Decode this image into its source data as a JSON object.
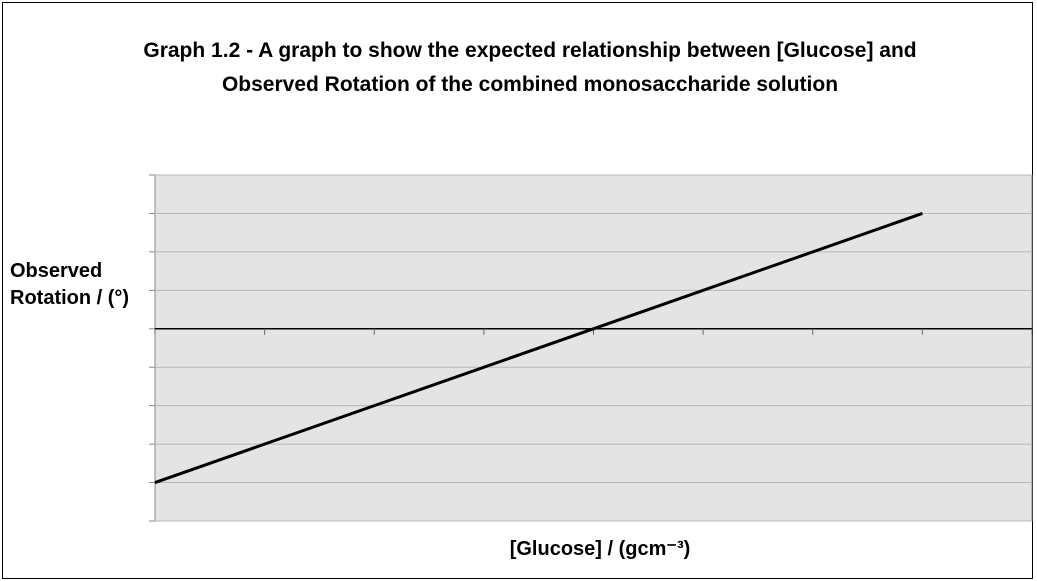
{
  "chart_data": {
    "type": "line",
    "title": "Graph 1.2 - A graph to show the expected relationship between [Glucose] and Observed Rotation of the combined monosaccharide solution",
    "x_label": "[Glucose] / (gcm⁻³)",
    "y_label": "Observed Rotation / (°)",
    "x": [
      0,
      7
    ],
    "series": [
      {
        "name": "Observed Rotation",
        "color": "#000000",
        "values": [
          -4,
          3
        ]
      }
    ],
    "xlim": [
      0,
      8
    ],
    "xticks": [
      0,
      1,
      2,
      3,
      4,
      5,
      6,
      7,
      8
    ],
    "ylim": [
      -5,
      4
    ],
    "yticks": [
      -5,
      -4,
      -3,
      -2,
      -1,
      0,
      1,
      2,
      3,
      4
    ],
    "grid": true
  }
}
